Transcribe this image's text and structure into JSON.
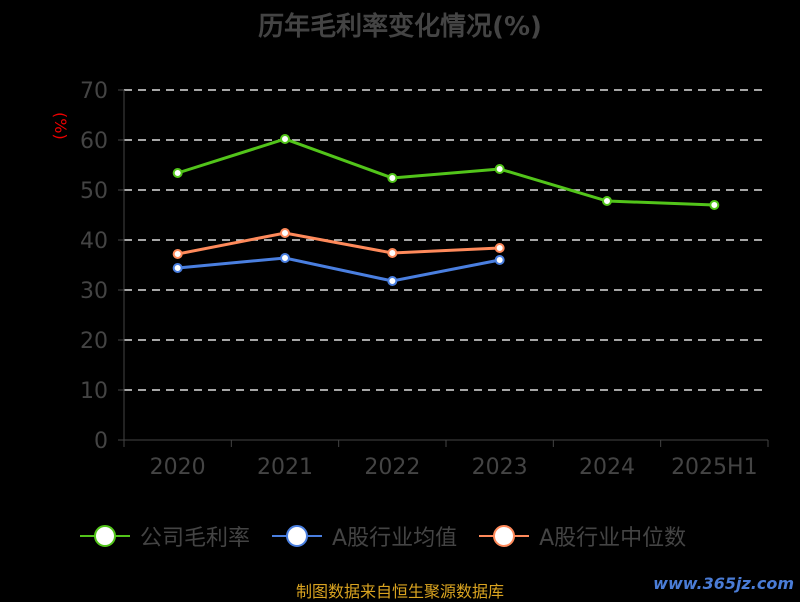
{
  "chart_data": {
    "type": "line",
    "title": "历年毛利率变化情况(%)",
    "ylabel": "(%)",
    "categories": [
      "2020",
      "2021",
      "2022",
      "2023",
      "2024",
      "2025H1"
    ],
    "ylim": [
      0,
      70
    ],
    "yticks": [
      "0",
      "10",
      "20",
      "30",
      "40",
      "50",
      "60",
      "70"
    ],
    "grid": true,
    "legend_position": "bottom",
    "series": [
      {
        "name": "公司毛利率",
        "color": "#52c41a",
        "values": [
          53.4,
          60.2,
          52.4,
          54.2,
          47.8,
          47.0
        ]
      },
      {
        "name": "A股行业均值",
        "color": "#4a7fe0",
        "values": [
          34.4,
          36.4,
          31.8,
          36.0,
          null,
          null
        ]
      },
      {
        "name": "A股行业中位数",
        "color": "#ff8a5b",
        "values": [
          37.2,
          41.4,
          37.4,
          38.4,
          null,
          null
        ]
      }
    ]
  },
  "footer": {
    "source": "制图数据来自恒生聚源数据库",
    "watermark": "www.365jz.com"
  }
}
